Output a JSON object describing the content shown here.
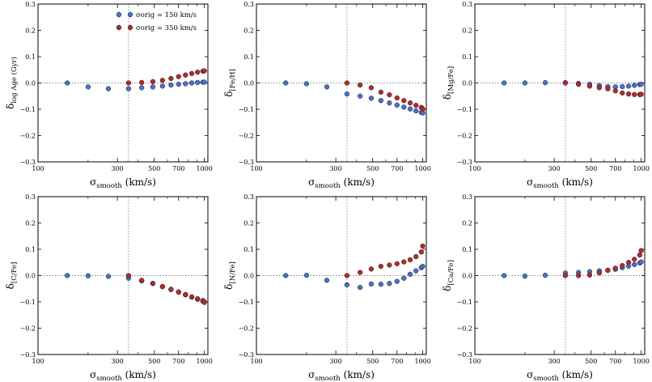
{
  "chart_data": {
    "type": "scatter",
    "legend": {
      "placement": "top-left of first panel",
      "entries": [
        {
          "label": "σorig = 150 km/s",
          "color": "#4a6fd1"
        },
        {
          "label": "σorig = 350 km/s",
          "color": "#b52a2a"
        }
      ]
    },
    "x_axis": {
      "scale": "log",
      "range": [
        100,
        1050
      ],
      "ticks": [
        100,
        300,
        500,
        700,
        1000
      ],
      "tick_labels": [
        "100",
        "300",
        "500",
        "700",
        "1000"
      ],
      "label_main": "σ",
      "label_sub": "smooth",
      "label_unit": " (km/s)",
      "vline": 350
    },
    "y_axis": {
      "range": [
        -0.3,
        0.3
      ],
      "ticks": [
        -0.3,
        -0.2,
        -0.1,
        0.0,
        0.1,
        0.2,
        0.3
      ],
      "tick_labels": [
        "−0.3",
        "−0.2",
        "−0.1",
        "0.0",
        "0.1",
        "0.2",
        "0.3"
      ],
      "hline": 0.0
    },
    "panels": [
      {
        "ylabel_main": "δ",
        "ylabel_sub": "log Age (Gyr)",
        "series": [
          {
            "name": "σorig = 150 km/s",
            "x": [
              150,
              200,
              265,
              350,
              420,
              490,
              560,
              630,
              700,
              770,
              840,
              910,
              980,
              1000
            ],
            "y": [
              0.0,
              -0.015,
              -0.022,
              -0.022,
              -0.018,
              -0.015,
              -0.012,
              -0.008,
              -0.005,
              -0.003,
              0.0,
              0.002,
              0.003,
              0.003
            ]
          },
          {
            "name": "σorig = 350 km/s",
            "x": [
              350,
              420,
              490,
              560,
              630,
              700,
              770,
              840,
              910,
              980,
              1000
            ],
            "y": [
              0.0,
              0.002,
              0.005,
              0.01,
              0.017,
              0.024,
              0.03,
              0.036,
              0.041,
              0.045,
              0.046
            ]
          }
        ]
      },
      {
        "ylabel_main": "δ",
        "ylabel_sub": "[Fe/H]",
        "series": [
          {
            "name": "σorig = 150 km/s",
            "x": [
              150,
              200,
              265,
              350,
              420,
              490,
              560,
              630,
              700,
              770,
              840,
              910,
              980,
              1000
            ],
            "y": [
              0.0,
              -0.003,
              -0.015,
              -0.042,
              -0.05,
              -0.058,
              -0.067,
              -0.076,
              -0.084,
              -0.092,
              -0.099,
              -0.106,
              -0.112,
              -0.114
            ]
          },
          {
            "name": "σorig = 350 km/s",
            "x": [
              350,
              420,
              490,
              560,
              630,
              700,
              770,
              840,
              910,
              980,
              1000
            ],
            "y": [
              0.0,
              -0.008,
              -0.018,
              -0.035,
              -0.045,
              -0.057,
              -0.067,
              -0.076,
              -0.085,
              -0.093,
              -0.099
            ]
          }
        ]
      },
      {
        "ylabel_main": "δ",
        "ylabel_sub": "[Mg/Fe]",
        "series": [
          {
            "name": "σorig = 150 km/s",
            "x": [
              150,
              200,
              265,
              350,
              420,
              490,
              560,
              630,
              700,
              770,
              840,
              910,
              980,
              1000
            ],
            "y": [
              0.0,
              0.0,
              0.001,
              0.001,
              -0.002,
              -0.005,
              -0.01,
              -0.014,
              -0.015,
              -0.014,
              -0.012,
              -0.009,
              -0.006,
              -0.005
            ]
          },
          {
            "name": "σorig = 350 km/s",
            "x": [
              350,
              420,
              490,
              560,
              630,
              700,
              770,
              840,
              910,
              980,
              1000
            ],
            "y": [
              0.0,
              -0.005,
              -0.012,
              -0.018,
              -0.022,
              -0.03,
              -0.038,
              -0.042,
              -0.044,
              -0.044,
              -0.043
            ]
          }
        ]
      },
      {
        "ylabel_main": "δ",
        "ylabel_sub": "[C/Fe]",
        "series": [
          {
            "name": "σorig = 150 km/s",
            "x": [
              150,
              200,
              265,
              350,
              420,
              490,
              560,
              630,
              700,
              770,
              840,
              910,
              980,
              1000
            ],
            "y": [
              0.0,
              -0.001,
              -0.003,
              -0.01,
              -0.02,
              -0.03,
              -0.042,
              -0.053,
              -0.063,
              -0.073,
              -0.082,
              -0.09,
              -0.098,
              -0.1
            ]
          },
          {
            "name": "σorig = 350 km/s",
            "x": [
              350,
              420,
              490,
              560,
              630,
              700,
              770,
              840,
              910,
              980,
              1000
            ],
            "y": [
              0.0,
              -0.018,
              -0.03,
              -0.042,
              -0.052,
              -0.062,
              -0.072,
              -0.081,
              -0.088,
              -0.095,
              -0.102
            ]
          }
        ]
      },
      {
        "ylabel_main": "δ",
        "ylabel_sub": "[N/Fe]",
        "series": [
          {
            "name": "σorig = 150 km/s",
            "x": [
              150,
              200,
              265,
              350,
              420,
              490,
              560,
              630,
              700,
              770,
              840,
              910,
              980,
              1000
            ],
            "y": [
              0.0,
              0.001,
              -0.018,
              -0.035,
              -0.045,
              -0.032,
              -0.033,
              -0.03,
              -0.022,
              -0.01,
              0.005,
              0.018,
              0.03,
              0.035
            ]
          },
          {
            "name": "σorig = 350 km/s",
            "x": [
              350,
              420,
              490,
              560,
              630,
              700,
              770,
              840,
              910,
              980,
              1000
            ],
            "y": [
              0.0,
              0.012,
              0.025,
              0.035,
              0.04,
              0.045,
              0.052,
              0.06,
              0.072,
              0.09,
              0.112
            ]
          }
        ]
      },
      {
        "ylabel_main": "δ",
        "ylabel_sub": "[Ca/Fe]",
        "series": [
          {
            "name": "σorig = 150 km/s",
            "x": [
              150,
              200,
              265,
              350,
              420,
              490,
              560,
              630,
              700,
              770,
              840,
              910,
              980,
              1000
            ],
            "y": [
              0.0,
              -0.002,
              0.001,
              0.01,
              0.012,
              0.015,
              0.018,
              0.02,
              0.024,
              0.03,
              0.036,
              0.042,
              0.048,
              0.052
            ]
          },
          {
            "name": "σorig = 350 km/s",
            "x": [
              350,
              420,
              490,
              560,
              630,
              700,
              770,
              840,
              910,
              980,
              1000
            ],
            "y": [
              0.0,
              0.0,
              0.002,
              0.01,
              0.02,
              0.028,
              0.038,
              0.05,
              0.062,
              0.078,
              0.095
            ]
          }
        ]
      }
    ]
  }
}
